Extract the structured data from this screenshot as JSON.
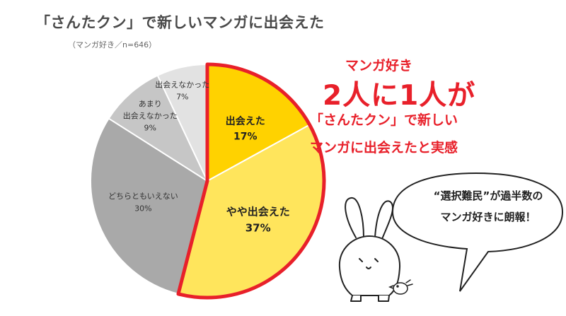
{
  "title": "「さんたクン」で新しいマンガに出会えた",
  "subtitle": "（マンガ好き／n=646）",
  "headline": {
    "line1": "マンガ好き",
    "line2": "2人に1人が",
    "line3": "「さんたクン」で新しい",
    "line4": "マンガに出会えたと実感"
  },
  "bubble": {
    "line1": "“選択難民”が過半数の",
    "line2": "マンガ好きに朗報！"
  },
  "chart_data": {
    "type": "pie",
    "slices": [
      {
        "label": "出会えた",
        "value": 17,
        "display": "17%",
        "color": "#ffd200"
      },
      {
        "label": "やや出会えた",
        "value": 37,
        "display": "37%",
        "color": "#ffe55c"
      },
      {
        "label": "どちらともいえない",
        "value": 30,
        "display": "30%",
        "color": "#a9a9a9"
      },
      {
        "label_lines": [
          "あまり",
          "出会えなかった"
        ],
        "value": 9,
        "display": "9%",
        "color": "#c6c6c6"
      },
      {
        "label": "出会えなかった",
        "value": 7,
        "display": "7%",
        "color": "#e2e2e2"
      }
    ],
    "highlight_color": "#e8202a"
  }
}
